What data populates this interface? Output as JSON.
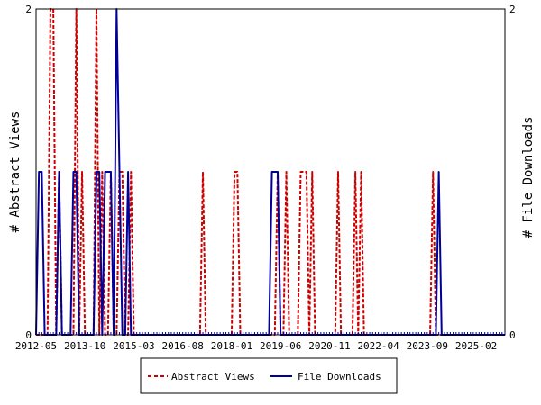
{
  "chart_data": {
    "type": "line",
    "x_tick_labels": [
      "2012-05",
      "2013-10",
      "2015-03",
      "2016-08",
      "2018-01",
      "2019-06",
      "2020-11",
      "2022-04",
      "2023-09",
      "2025-02"
    ],
    "x_range": [
      "2012-05",
      "2025-12"
    ],
    "y_left": {
      "label": "# Abstract Views",
      "ticks": [
        "0",
        "2"
      ],
      "range": [
        0,
        2
      ]
    },
    "y_right": {
      "label": "# File Downloads",
      "ticks": [
        "0",
        "2"
      ],
      "range": [
        0,
        2
      ]
    },
    "grid": false,
    "legend_position": "bottom-center",
    "series": [
      {
        "name": "Abstract Views",
        "axis": "left",
        "color": "#cc0000",
        "dash": true,
        "points": [
          [
            "2012-10",
            2
          ],
          [
            "2012-11",
            2
          ],
          [
            "2013-01",
            1
          ],
          [
            "2013-07",
            2
          ],
          [
            "2013-09",
            1
          ],
          [
            "2014-02",
            2
          ],
          [
            "2014-04",
            1
          ],
          [
            "2014-07",
            1
          ],
          [
            "2014-10",
            1
          ],
          [
            "2014-11",
            1
          ],
          [
            "2015-02",
            1
          ],
          [
            "2017-03",
            1
          ],
          [
            "2018-02",
            1
          ],
          [
            "2018-03",
            1
          ],
          [
            "2019-05",
            1
          ],
          [
            "2019-08",
            1
          ],
          [
            "2020-01",
            1
          ],
          [
            "2020-02",
            1
          ],
          [
            "2020-03",
            1
          ],
          [
            "2020-05",
            1
          ],
          [
            "2021-02",
            1
          ],
          [
            "2021-08",
            1
          ],
          [
            "2021-10",
            1
          ],
          [
            "2023-11",
            1
          ]
        ]
      },
      {
        "name": "File Downloads",
        "axis": "right",
        "color": "#000099",
        "dash": false,
        "points": [
          [
            "2012-06",
            1
          ],
          [
            "2012-07",
            1
          ],
          [
            "2013-01",
            1
          ],
          [
            "2013-06",
            1
          ],
          [
            "2013-07",
            1
          ],
          [
            "2014-02",
            1
          ],
          [
            "2014-03",
            1
          ],
          [
            "2014-05",
            1
          ],
          [
            "2014-06",
            1
          ],
          [
            "2014-07",
            1
          ],
          [
            "2014-09",
            2
          ],
          [
            "2014-10",
            1
          ],
          [
            "2015-01",
            1
          ],
          [
            "2019-03",
            1
          ],
          [
            "2019-04",
            1
          ],
          [
            "2019-05",
            1
          ],
          [
            "2024-01",
            1
          ]
        ]
      }
    ]
  }
}
